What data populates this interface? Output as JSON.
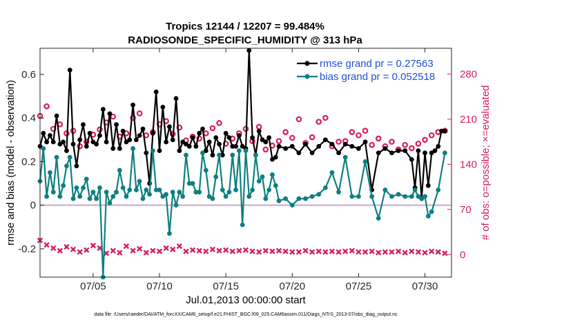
{
  "chart_data": {
    "type": "line",
    "title_line1": "Tropics 12144 / 12207 = 99.484%",
    "title_line2": "RADIOSONDE_SPECIFIC_HUMIDITY @ 313 hPa",
    "xlabel": "Jul.01,2013 00:00:00 start",
    "ylabel_left": "rmse and bias (model - observation)",
    "ylabel_right": "# of obs: o=possible; ×=evaluated",
    "xlim": [
      1.0,
      32.0
    ],
    "ylim_left": [
      -0.33,
      0.72
    ],
    "ylim_right": [
      -35.0,
      320.0
    ],
    "x_ticks": [
      5,
      10,
      15,
      20,
      25,
      30
    ],
    "x_tick_labels": [
      "07/05",
      "07/10",
      "07/15",
      "07/20",
      "07/25",
      "07/30"
    ],
    "y_ticks_left": [
      -0.2,
      0,
      0.2,
      0.4,
      0.6
    ],
    "y_tick_labels_left": [
      "-0.2",
      "0",
      "0.2",
      "0.4",
      "0.6"
    ],
    "y_ticks_right": [
      0,
      70,
      140,
      210,
      280
    ],
    "y_tick_labels_right": [
      "0",
      "70",
      "140",
      "210",
      "280"
    ],
    "zero_line": 0,
    "legend": [
      "rmse grand pr = 0.27563",
      "bias grand pr = 0.052518"
    ],
    "legend_position": "top-right",
    "colors": {
      "rmse": "#000000",
      "bias": "#0e7f80",
      "obs": "#d81b60",
      "legend_text": "#1f4fd8",
      "zero_line": "#c6a9c7"
    },
    "series": [
      {
        "name": "rmse",
        "axis": "left",
        "points": [
          [
            1.0,
            0.27
          ],
          [
            1.25,
            0.33
          ],
          [
            1.5,
            0.29
          ],
          [
            1.75,
            0.32
          ],
          [
            2.0,
            0.29
          ],
          [
            2.25,
            0.41
          ],
          [
            2.5,
            0.28
          ],
          [
            2.75,
            0.29
          ],
          [
            3.0,
            0.25
          ],
          [
            3.25,
            0.62
          ],
          [
            3.5,
            0.28
          ],
          [
            3.75,
            0.18
          ],
          [
            4.0,
            0.3
          ],
          [
            4.25,
            0.37
          ],
          [
            4.5,
            0.27
          ],
          [
            4.75,
            0.33
          ],
          [
            5.0,
            0.29
          ],
          [
            5.25,
            0.28
          ],
          [
            5.5,
            0.32
          ],
          [
            5.75,
            0.44
          ],
          [
            6.0,
            0.29
          ],
          [
            6.25,
            0.42
          ],
          [
            6.5,
            0.26
          ],
          [
            6.75,
            0.37
          ],
          [
            7.0,
            0.26
          ],
          [
            7.25,
            0.34
          ],
          [
            7.5,
            0.29
          ],
          [
            7.75,
            0.3
          ],
          [
            8.0,
            0.46
          ],
          [
            8.25,
            0.3
          ],
          [
            8.5,
            0.32
          ],
          [
            8.75,
            0.35
          ],
          [
            9.0,
            0.24
          ],
          [
            9.25,
            0.1
          ],
          [
            9.5,
            0.33
          ],
          [
            9.75,
            0.52
          ],
          [
            10.0,
            0.25
          ],
          [
            10.25,
            0.45
          ],
          [
            10.5,
            0.29
          ],
          [
            10.75,
            0.36
          ],
          [
            11.0,
            0.3
          ],
          [
            11.25,
            0.49
          ],
          [
            11.5,
            0.25
          ],
          [
            11.75,
            0.29
          ],
          [
            12.0,
            0.28
          ],
          [
            12.25,
            0.27
          ],
          [
            12.5,
            0.31
          ],
          [
            12.75,
            0.27
          ],
          [
            13.0,
            0.33
          ],
          [
            13.25,
            0.35
          ],
          [
            13.5,
            0.25
          ],
          [
            13.75,
            0.29
          ],
          [
            14.0,
            0.23
          ],
          [
            14.25,
            0.31
          ],
          [
            14.5,
            0.28
          ],
          [
            14.75,
            0.23
          ],
          [
            15.0,
            0.33
          ],
          [
            15.25,
            0.31
          ],
          [
            15.5,
            0.27
          ],
          [
            15.75,
            0.27
          ],
          [
            16.0,
            0.32
          ],
          [
            16.25,
            0.27
          ],
          [
            16.5,
            0.26
          ],
          [
            16.75,
            0.71
          ],
          [
            17.0,
            0.31
          ],
          [
            17.25,
            0.23
          ],
          [
            17.5,
            0.34
          ],
          [
            17.75,
            0.3
          ],
          [
            18.0,
            0.29
          ],
          [
            18.25,
            0.31
          ],
          [
            18.5,
            0.21
          ],
          [
            18.75,
            0.22
          ],
          [
            19.0,
            0.27
          ],
          [
            19.5,
            0.26
          ],
          [
            20.0,
            0.27
          ],
          [
            20.5,
            0.24
          ],
          [
            21.0,
            0.28
          ],
          [
            21.5,
            0.24
          ],
          [
            22.0,
            0.27
          ],
          [
            22.5,
            0.3
          ],
          [
            23.0,
            0.28
          ],
          [
            23.5,
            0.24
          ],
          [
            24.0,
            0.28
          ],
          [
            24.5,
            0.27
          ],
          [
            25.0,
            0.26
          ],
          [
            25.5,
            0.29
          ],
          [
            26.0,
            0.07
          ],
          [
            26.5,
            0.24
          ],
          [
            27.0,
            0.26
          ],
          [
            27.5,
            0.24
          ],
          [
            28.0,
            0.25
          ],
          [
            28.5,
            0.25
          ],
          [
            29.0,
            0.21
          ],
          [
            29.25,
            0.08
          ],
          [
            29.5,
            0.25
          ],
          [
            29.75,
            0.03
          ],
          [
            30.0,
            0.24
          ],
          [
            30.25,
            0.09
          ],
          [
            30.5,
            0.24
          ],
          [
            30.75,
            0.25
          ],
          [
            31.0,
            0.27
          ],
          [
            31.25,
            0.34
          ],
          [
            31.5,
            0.34
          ]
        ]
      },
      {
        "name": "bias",
        "axis": "left",
        "points": [
          [
            1.0,
            0.11
          ],
          [
            1.25,
            0.26
          ],
          [
            1.5,
            0.04
          ],
          [
            1.75,
            0.15
          ],
          [
            2.0,
            0.06
          ],
          [
            2.25,
            0.22
          ],
          [
            2.5,
            0.04
          ],
          [
            2.75,
            0.09
          ],
          [
            3.0,
            0.18
          ],
          [
            3.25,
            0.22
          ],
          [
            3.5,
            0.03
          ],
          [
            3.75,
            0.08
          ],
          [
            4.0,
            0.04
          ],
          [
            4.25,
            0.08
          ],
          [
            4.5,
            0.12
          ],
          [
            4.75,
            0.03
          ],
          [
            5.0,
            0.06
          ],
          [
            5.25,
            0.03
          ],
          [
            5.5,
            0.08
          ],
          [
            5.75,
            -0.33
          ],
          [
            6.0,
            0.06
          ],
          [
            6.25,
            0.01
          ],
          [
            6.5,
            0.04
          ],
          [
            6.75,
            0.06
          ],
          [
            7.0,
            0.16
          ],
          [
            7.25,
            0.08
          ],
          [
            7.5,
            0.04
          ],
          [
            7.75,
            0.07
          ],
          [
            8.0,
            0.26
          ],
          [
            8.25,
            0.07
          ],
          [
            8.5,
            0.11
          ],
          [
            8.75,
            0.03
          ],
          [
            9.0,
            0.07
          ],
          [
            9.25,
            0.05
          ],
          [
            9.5,
            0.25
          ],
          [
            9.75,
            0.07
          ],
          [
            10.0,
            0.07
          ],
          [
            10.25,
            0.04
          ],
          [
            10.5,
            0.05
          ],
          [
            10.75,
            -0.13
          ],
          [
            11.0,
            0.06
          ],
          [
            11.25,
            0.0
          ],
          [
            11.5,
            0.06
          ],
          [
            11.75,
            0.04
          ],
          [
            12.0,
            0.23
          ],
          [
            12.25,
            0.1
          ],
          [
            12.5,
            0.1
          ],
          [
            12.75,
            0.06
          ],
          [
            13.0,
            0.06
          ],
          [
            13.25,
            0.24
          ],
          [
            13.5,
            0.16
          ],
          [
            13.75,
            0.04
          ],
          [
            14.0,
            0.03
          ],
          [
            14.25,
            0.13
          ],
          [
            14.5,
            0.23
          ],
          [
            14.75,
            0.07
          ],
          [
            15.0,
            0.04
          ],
          [
            15.25,
            0.06
          ],
          [
            15.5,
            0.23
          ],
          [
            15.75,
            0.07
          ],
          [
            16.0,
            0.25
          ],
          [
            16.25,
            -0.09
          ],
          [
            16.5,
            0.25
          ],
          [
            16.75,
            0.04
          ],
          [
            17.0,
            0.07
          ],
          [
            17.25,
            0.23
          ],
          [
            17.5,
            0.11
          ],
          [
            17.75,
            0.13
          ],
          [
            18.0,
            0.03
          ],
          [
            18.25,
            0.07
          ],
          [
            18.5,
            0.14
          ],
          [
            18.75,
            0.09
          ],
          [
            19.0,
            0.02
          ],
          [
            19.5,
            0.03
          ],
          [
            20.0,
            0.0
          ],
          [
            20.5,
            0.03
          ],
          [
            21.0,
            0.03
          ],
          [
            21.5,
            0.04
          ],
          [
            22.0,
            0.05
          ],
          [
            22.5,
            0.08
          ],
          [
            23.0,
            0.15
          ],
          [
            23.5,
            0.06
          ],
          [
            24.0,
            0.22
          ],
          [
            24.5,
            0.04
          ],
          [
            25.0,
            0.04
          ],
          [
            25.5,
            0.2
          ],
          [
            26.0,
            0.04
          ],
          [
            26.5,
            -0.06
          ],
          [
            27.0,
            0.07
          ],
          [
            27.5,
            0.04
          ],
          [
            28.0,
            0.05
          ],
          [
            28.5,
            0.04
          ],
          [
            29.0,
            0.04
          ],
          [
            29.25,
            0.07
          ],
          [
            29.5,
            0.04
          ],
          [
            29.75,
            0.03
          ],
          [
            30.0,
            0.04
          ],
          [
            30.25,
            -0.05
          ],
          [
            30.5,
            -0.03
          ],
          [
            31.0,
            0.07
          ],
          [
            31.5,
            0.24
          ]
        ]
      },
      {
        "name": "obs_possible",
        "axis": "right",
        "marker": "circle",
        "x": [
          1.0,
          1.5,
          2.0,
          2.5,
          3.0,
          3.5,
          4.0,
          4.5,
          5.0,
          5.5,
          6.0,
          6.5,
          7.0,
          7.5,
          8.0,
          8.5,
          9.0,
          9.5,
          10.0,
          10.5,
          11.0,
          11.5,
          12.0,
          12.5,
          13.0,
          13.5,
          14.0,
          14.5,
          15.0,
          15.5,
          16.0,
          16.5,
          17.0,
          17.5,
          18.0,
          18.5,
          19.0,
          19.5,
          20.0,
          20.5,
          21.0,
          21.5,
          22.0,
          22.5,
          23.0,
          23.5,
          24.0,
          24.5,
          25.0,
          25.5,
          26.0,
          26.5,
          27.0,
          27.5,
          28.0,
          28.5,
          29.0,
          29.5,
          30.0,
          30.5,
          31.0,
          31.5
        ],
        "values": [
          215,
          230,
          195,
          202,
          188,
          192,
          168,
          175,
          186,
          194,
          205,
          214,
          183,
          188,
          212,
          219,
          185,
          190,
          202,
          207,
          187,
          197,
          177,
          183,
          180,
          188,
          196,
          204,
          172,
          180,
          188,
          195,
          176,
          198,
          163,
          169,
          176,
          190,
          181,
          210,
          173,
          182,
          206,
          212,
          168,
          175,
          176,
          190,
          185,
          192,
          170,
          180,
          168,
          175,
          163,
          170,
          165,
          172,
          178,
          185,
          190,
          192
        ]
      },
      {
        "name": "obs_evaluated",
        "axis": "right",
        "marker": "x",
        "x": [
          1.0,
          1.5,
          2.0,
          2.5,
          3.0,
          3.5,
          4.0,
          4.5,
          5.0,
          5.5,
          6.0,
          6.5,
          7.0,
          7.5,
          8.0,
          8.5,
          9.0,
          9.5,
          10.0,
          10.5,
          11.0,
          11.5,
          12.0,
          12.5,
          13.0,
          13.5,
          14.0,
          14.5,
          15.0,
          15.5,
          16.0,
          16.5,
          17.0,
          17.5,
          18.0,
          18.5,
          19.0,
          19.5,
          20.0,
          20.5,
          21.0,
          21.5,
          22.0,
          22.5,
          23.0,
          23.5,
          24.0,
          24.5,
          25.0,
          25.5,
          26.0,
          26.5,
          27.0,
          27.5,
          28.0,
          28.5,
          29.0,
          29.5,
          30.0,
          30.5,
          31.0,
          31.5
        ],
        "values": [
          22,
          15,
          10,
          6,
          12,
          8,
          4,
          7,
          14,
          10,
          2,
          6,
          3,
          13,
          6,
          9,
          3,
          6,
          5,
          10,
          8,
          13,
          5,
          7,
          6,
          5,
          8,
          6,
          7,
          5,
          6,
          7,
          5,
          4,
          6,
          5,
          6,
          5,
          4,
          4,
          6,
          4,
          5,
          4,
          5,
          4,
          5,
          6,
          4,
          4,
          5,
          3,
          4,
          4,
          5,
          3,
          5,
          4,
          3,
          5,
          4,
          2
        ]
      }
    ]
  },
  "footer": "data file: /Users/raeder/DAI/ATM_forcXX/CAM6_setup/f.e21.FHIST_BGC.f09_025.CAM6assim.011/Diags_NTrS_2013-07/obs_diag_output.nc"
}
